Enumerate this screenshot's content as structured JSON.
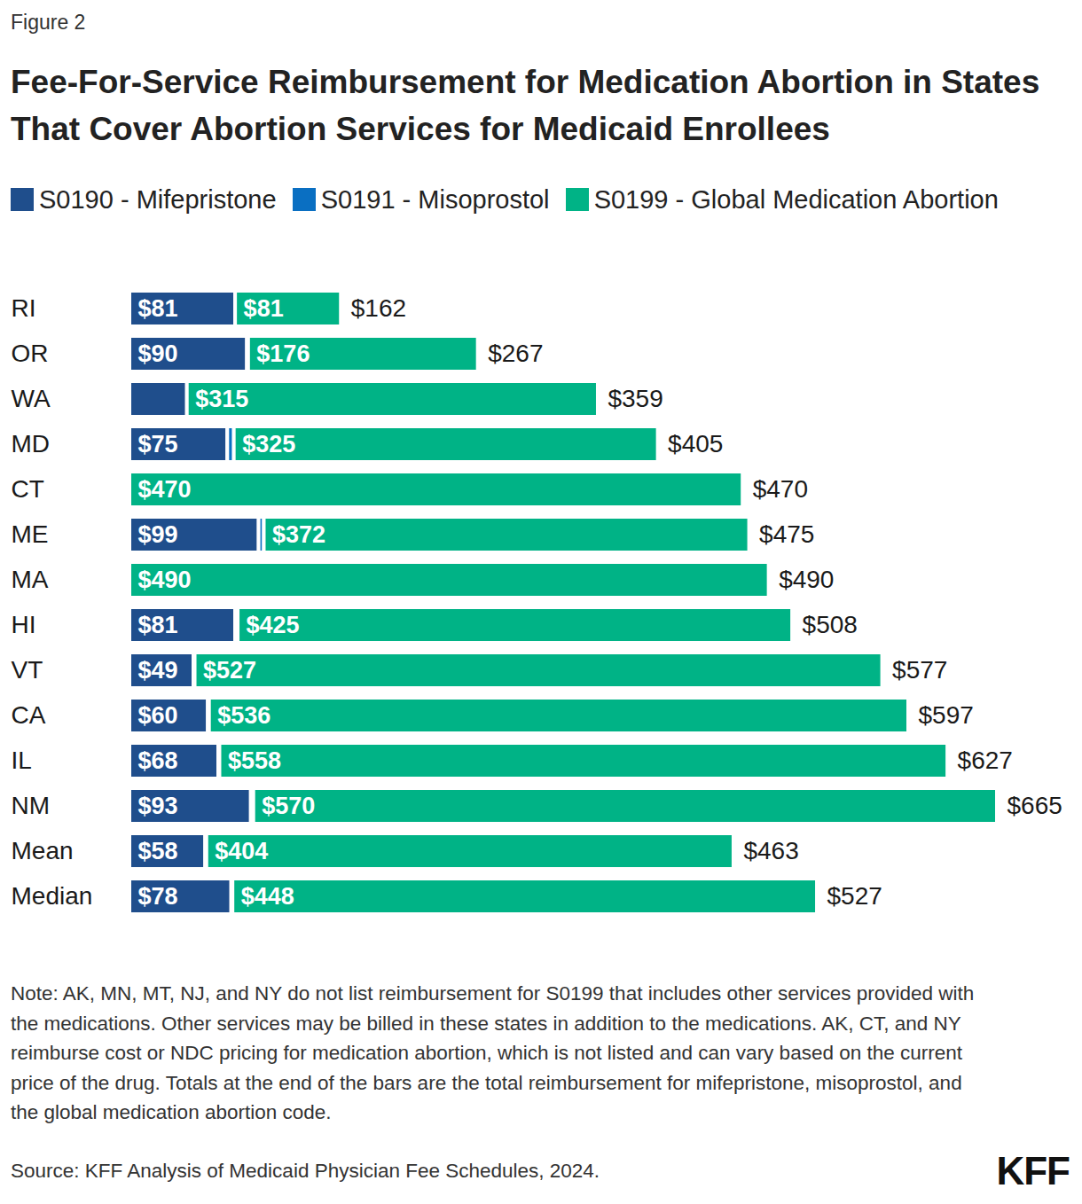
{
  "chart_data": {
    "type": "bar",
    "figure_label": "Figure 2",
    "title": "Fee-For-Service Reimbursement for Medication Abortion in States That Cover Abortion Services for Medicaid Enrollees",
    "orientation": "horizontal",
    "stacked": true,
    "data_labels": true,
    "tick_labels": "y",
    "grid": false,
    "legend": "top",
    "categories": [
      "RI",
      "OR",
      "WA",
      "MD",
      "CT",
      "ME",
      "MA",
      "HI",
      "VT",
      "CA",
      "IL",
      "NM",
      "Mean",
      "Median"
    ],
    "xlim": [
      0,
      665
    ],
    "xticks": [],
    "series": [
      {
        "name": "S0190 - Mifepristone",
        "color": "#1f4e8c",
        "values": [
          81,
          90,
          44,
          75,
          0,
          99,
          0,
          81,
          49,
          60,
          68,
          93,
          58,
          78
        ],
        "value_labels": [
          "$81",
          "$90",
          null,
          "$75",
          null,
          "$99",
          null,
          "$81",
          "$49",
          "$60",
          "$68",
          "$93",
          "$58",
          "$78"
        ]
      },
      {
        "name": "S0191 - Misoprostol",
        "color": "#0a6fc2",
        "values": [
          0,
          1,
          0,
          5,
          0,
          4,
          0,
          2,
          1,
          1,
          1,
          2,
          1,
          1
        ],
        "value_labels": [
          null,
          null,
          null,
          null,
          null,
          null,
          null,
          null,
          null,
          null,
          null,
          null,
          null,
          null
        ]
      },
      {
        "name": "S0199 - Global Medication Abortion",
        "color": "#00b386",
        "values": [
          81,
          176,
          315,
          325,
          470,
          372,
          490,
          425,
          527,
          536,
          558,
          570,
          404,
          448
        ],
        "value_labels": [
          "$81",
          "$176",
          "$315",
          "$325",
          "$470",
          "$372",
          "$490",
          "$425",
          "$527",
          "$536",
          "$558",
          "$570",
          "$404",
          "$448"
        ]
      }
    ],
    "totals": {
      "values": [
        162,
        267,
        359,
        405,
        470,
        475,
        490,
        508,
        577,
        597,
        627,
        665,
        463,
        527
      ],
      "value_labels": [
        "$162",
        "$267",
        "$359",
        "$405",
        "$470",
        "$475",
        "$490",
        "$508",
        "$577",
        "$597",
        "$627",
        "$665",
        "$463",
        "$527"
      ]
    },
    "note": "Note: AK, MN, MT, NJ, and NY do not list reimbursement for S0199 that includes other services provided with the medications. Other services may be billed in these states in addition to the medications. AK, CT, and NY reimburse cost or NDC pricing for medication abortion, which is not listed and can vary based on the current price of the drug. Totals at the end of the bars are the total reimbursement for mifepristone, misoprostol, and the global medication abortion code.",
    "source": "Source: KFF Analysis of Medicaid Physician Fee Schedules, 2024.",
    "logo": "KFF"
  }
}
